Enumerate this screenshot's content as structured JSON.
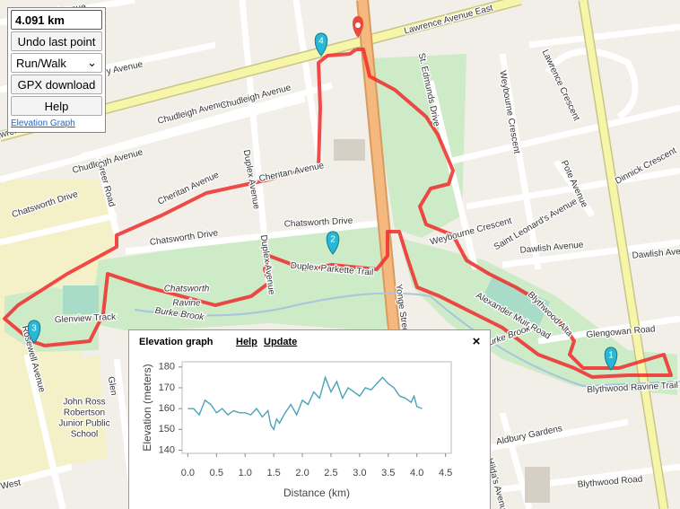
{
  "controls": {
    "distance": "4.091 km",
    "undo": "Undo last point",
    "mode": "Run/Walk",
    "gpx": "GPX download",
    "help": "Help",
    "elevation_link": "Elevation Graph"
  },
  "map": {
    "labels": [
      "Douglas Avenue",
      "Glengarry Avenue",
      "Lawrence Avenue East",
      "Lawrence Avenue West",
      "Chudleigh Avenue",
      "Chudleigh Avenue",
      "Chudleigh Avenue",
      "Greer Road",
      "Chatsworth Drive",
      "Chatsworth Drive",
      "Chatsworth Drive",
      "Cheritan Avenue",
      "Cheritan Avenue",
      "Duplex Avenue",
      "Duplex Avenue",
      "Chatsworth",
      "Ravine",
      "Burke Brook",
      "Burke Brook",
      "Duplex Parkette Trail",
      "Glenview Track",
      "Rosewell Avenue",
      "John Ross",
      "Robertson",
      "Junior Public",
      "School",
      "Yonge Street",
      "St. Edmunds Drive",
      "Weybourne Crescent",
      "Weybourne Crescent",
      "Pote Avenue",
      "Saint Leonard's Avenue",
      "Lawrence Crescent",
      "Dinnick Crescent",
      "Dawlish Avenue",
      "Dawlish Avenue",
      "Blythwood Alta",
      "Alexander Muir Road",
      "Glengowan Road",
      "Blythwood Ravine Trail",
      "Aldbury Gardens",
      "St. Hilda's Avenue",
      "Blythwood Road",
      "West",
      "Glen"
    ],
    "markers": [
      "1",
      "2",
      "3",
      "4"
    ]
  },
  "popup": {
    "title": "Elevation graph",
    "help": "Help",
    "update": "Update",
    "close": "×"
  },
  "chart_data": {
    "type": "line",
    "xlabel": "Distance (km)",
    "ylabel": "Elevation (meters)",
    "color": "#4aa3b8",
    "x": [
      0,
      0.1,
      0.2,
      0.3,
      0.4,
      0.5,
      0.6,
      0.7,
      0.8,
      0.9,
      1.0,
      1.1,
      1.2,
      1.3,
      1.4,
      1.45,
      1.5,
      1.55,
      1.6,
      1.7,
      1.8,
      1.9,
      2.0,
      2.1,
      2.2,
      2.3,
      2.4,
      2.5,
      2.6,
      2.7,
      2.8,
      2.9,
      3.0,
      3.1,
      3.2,
      3.3,
      3.4,
      3.5,
      3.6,
      3.7,
      3.8,
      3.9,
      3.95,
      4.0,
      4.09
    ],
    "values": [
      160,
      160,
      157,
      164,
      162,
      158,
      160,
      157,
      159,
      158,
      158,
      157,
      160,
      156,
      159,
      152,
      150,
      155,
      153,
      158,
      162,
      157,
      164,
      162,
      168,
      165,
      175,
      168,
      173,
      165,
      170,
      168,
      166,
      170,
      169,
      172,
      175,
      172,
      170,
      166,
      165,
      163,
      166,
      161,
      160
    ],
    "xlim": [
      -0.1,
      4.6
    ],
    "ylim": [
      138.5,
      182.5
    ],
    "xticks": [
      {
        "value": 0,
        "label": "0.0"
      },
      0.5,
      {
        "value": 1,
        "label": "1.0"
      },
      1.5,
      {
        "value": 2,
        "label": "2.0"
      },
      2.5,
      {
        "value": 3,
        "label": "3.0"
      },
      3.5,
      {
        "value": 4,
        "label": "4.0"
      },
      4.5
    ],
    "yticks": [
      140,
      150,
      160,
      170,
      180
    ]
  }
}
